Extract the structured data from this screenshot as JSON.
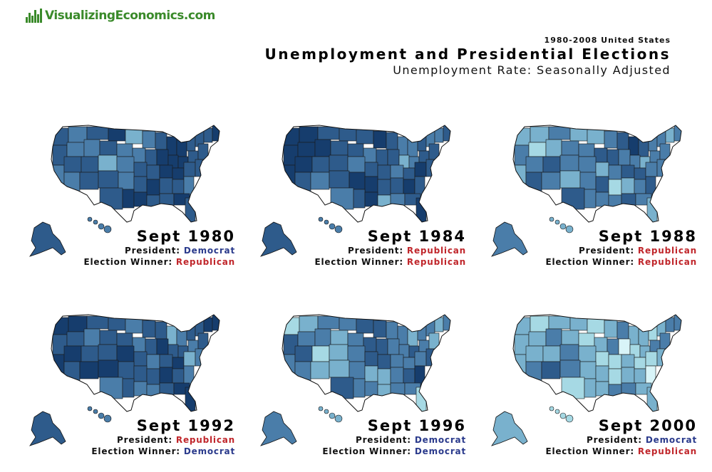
{
  "logo": {
    "text": "VisualizingEconomics.com",
    "icon": "bar-chart-icon",
    "color": "#3a8a2a"
  },
  "header": {
    "date_range": "1980-2008 United States",
    "title": "Unemployment and Presidential Elections",
    "subtitle": "Unemployment Rate: Seasonally Adjusted"
  },
  "labels": {
    "president": "President:",
    "winner": "Election Winner:"
  },
  "party_colors": {
    "Democrat": "#2a3a8c",
    "Republican": "#c0262b"
  },
  "shade_palette": [
    "#d8f4f8",
    "#a6d9e4",
    "#79b1cd",
    "#4a7da9",
    "#2e5b8b",
    "#163d6d"
  ],
  "panels": [
    {
      "period": "Sept 1980",
      "president": "Democrat",
      "winner": "Republican",
      "overall_level": 4
    },
    {
      "period": "Sept 1984",
      "president": "Republican",
      "winner": "Republican",
      "overall_level": 4
    },
    {
      "period": "Sept 1988",
      "president": "Republican",
      "winner": "Republican",
      "overall_level": 3
    },
    {
      "period": "Sept 1992",
      "president": "Republican",
      "winner": "Democrat",
      "overall_level": 4
    },
    {
      "period": "Sept 1996",
      "president": "Democrat",
      "winner": "Democrat",
      "overall_level": 3
    },
    {
      "period": "Sept 2000",
      "president": "Democrat",
      "winner": "Republican",
      "overall_level": 2
    }
  ]
}
